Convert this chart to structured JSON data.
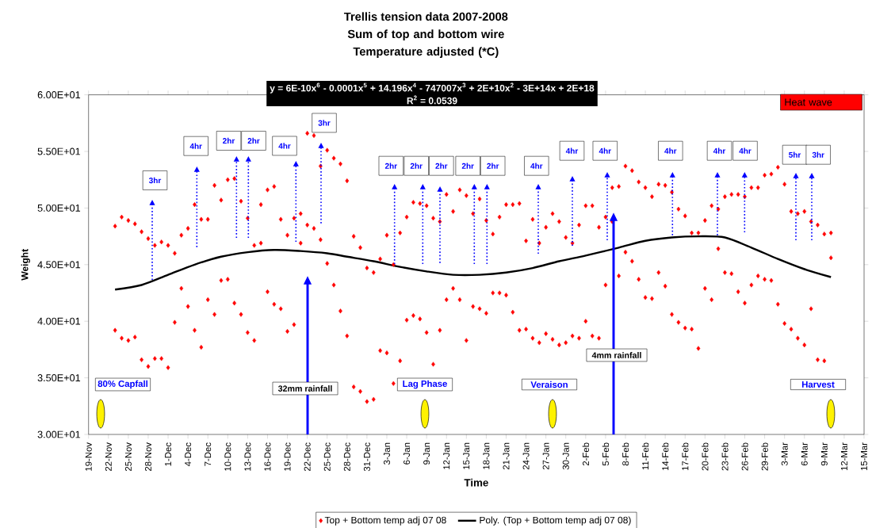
{
  "chart_data": {
    "type": "scatter",
    "title": "Trellis tension data 2007-2008",
    "subtitle": "Sum of top and bottom wire Temperature adjusted (*C)",
    "xlabel": "Time",
    "ylabel": "Weight",
    "legend": "bottom",
    "xlim": [
      "2007-11-19",
      "2008-03-15"
    ],
    "ylim": [
      30,
      60
    ],
    "yticks": [
      {
        "value": 30,
        "label": "3.00E+01"
      },
      {
        "value": 35,
        "label": "3.50E+01"
      },
      {
        "value": 40,
        "label": "4.00E+01"
      },
      {
        "value": 45,
        "label": "4.50E+01"
      },
      {
        "value": 50,
        "label": "5.00E+01"
      },
      {
        "value": 55,
        "label": "5.50E+01"
      },
      {
        "value": 60,
        "label": "6.00E+01"
      }
    ],
    "xticks": [
      {
        "value": "2007-11-19",
        "label": "19-Nov"
      },
      {
        "value": "2007-11-22",
        "label": "22-Nov"
      },
      {
        "value": "2007-11-25",
        "label": "25-Nov"
      },
      {
        "value": "2007-11-28",
        "label": "28-Nov"
      },
      {
        "value": "2007-12-01",
        "label": "1-Dec"
      },
      {
        "value": "2007-12-04",
        "label": "4-Dec"
      },
      {
        "value": "2007-12-07",
        "label": "7-Dec"
      },
      {
        "value": "2007-12-10",
        "label": "10-Dec"
      },
      {
        "value": "2007-12-13",
        "label": "13-Dec"
      },
      {
        "value": "2007-12-16",
        "label": "16-Dec"
      },
      {
        "value": "2007-12-19",
        "label": "19-Dec"
      },
      {
        "value": "2007-12-22",
        "label": "22-Dec"
      },
      {
        "value": "2007-12-25",
        "label": "25-Dec"
      },
      {
        "value": "2007-12-28",
        "label": "28-Dec"
      },
      {
        "value": "2007-12-31",
        "label": "31-Dec"
      },
      {
        "value": "2008-01-03",
        "label": "3-Jan"
      },
      {
        "value": "2008-01-06",
        "label": "6-Jan"
      },
      {
        "value": "2008-01-09",
        "label": "9-Jan"
      },
      {
        "value": "2008-01-12",
        "label": "12-Jan"
      },
      {
        "value": "2008-01-15",
        "label": "15-Jan"
      },
      {
        "value": "2008-01-18",
        "label": "18-Jan"
      },
      {
        "value": "2008-01-21",
        "label": "21-Jan"
      },
      {
        "value": "2008-01-24",
        "label": "24-Jan"
      },
      {
        "value": "2008-01-27",
        "label": "27-Jan"
      },
      {
        "value": "2008-01-30",
        "label": "30-Jan"
      },
      {
        "value": "2008-02-02",
        "label": "2-Feb"
      },
      {
        "value": "2008-02-05",
        "label": "5-Feb"
      },
      {
        "value": "2008-02-08",
        "label": "8-Feb"
      },
      {
        "value": "2008-02-11",
        "label": "11-Feb"
      },
      {
        "value": "2008-02-14",
        "label": "14-Feb"
      },
      {
        "value": "2008-02-17",
        "label": "17-Feb"
      },
      {
        "value": "2008-02-20",
        "label": "20-Feb"
      },
      {
        "value": "2008-02-23",
        "label": "23-Feb"
      },
      {
        "value": "2008-02-26",
        "label": "26-Feb"
      },
      {
        "value": "2008-02-29",
        "label": "29-Feb"
      },
      {
        "value": "2008-03-03",
        "label": "3-Mar"
      },
      {
        "value": "2008-03-06",
        "label": "6-Mar"
      },
      {
        "value": "2008-03-09",
        "label": "9-Mar"
      },
      {
        "value": "2008-03-12",
        "label": "12-Mar"
      },
      {
        "value": "2008-03-15",
        "label": "15-Mar"
      }
    ],
    "series": [
      {
        "name": "Top + Bottom temp adj 07 08",
        "type": "scatter",
        "color": "#ff0000",
        "marker": "diamond",
        "x": [
          "2007-11-23",
          "2007-11-23",
          "2007-11-24",
          "2007-11-24",
          "2007-11-25",
          "2007-11-25",
          "2007-11-26",
          "2007-11-26",
          "2007-11-27",
          "2007-11-27",
          "2007-11-28",
          "2007-11-28",
          "2007-11-29",
          "2007-11-29",
          "2007-11-30",
          "2007-11-30",
          "2007-12-01",
          "2007-12-01",
          "2007-12-02",
          "2007-12-02",
          "2007-12-03",
          "2007-12-03",
          "2007-12-04",
          "2007-12-04",
          "2007-12-05",
          "2007-12-05",
          "2007-12-06",
          "2007-12-06",
          "2007-12-07",
          "2007-12-07",
          "2007-12-08",
          "2007-12-08",
          "2007-12-09",
          "2007-12-09",
          "2007-12-10",
          "2007-12-10",
          "2007-12-11",
          "2007-12-11",
          "2007-12-12",
          "2007-12-12",
          "2007-12-13",
          "2007-12-13",
          "2007-12-14",
          "2007-12-14",
          "2007-12-15",
          "2007-12-15",
          "2007-12-16",
          "2007-12-16",
          "2007-12-17",
          "2007-12-17",
          "2007-12-18",
          "2007-12-18",
          "2007-12-19",
          "2007-12-19",
          "2007-12-20",
          "2007-12-20",
          "2007-12-21",
          "2007-12-21",
          "2007-12-22",
          "2007-12-22",
          "2007-12-23",
          "2007-12-23",
          "2007-12-24",
          "2007-12-24",
          "2007-12-25",
          "2007-12-25",
          "2007-12-26",
          "2007-12-26",
          "2007-12-27",
          "2007-12-27",
          "2007-12-28",
          "2007-12-28",
          "2007-12-29",
          "2007-12-29",
          "2007-12-30",
          "2007-12-30",
          "2007-12-31",
          "2007-12-31",
          "2008-01-01",
          "2008-01-01",
          "2008-01-02",
          "2008-01-02",
          "2008-01-03",
          "2008-01-03",
          "2008-01-04",
          "2008-01-04",
          "2008-01-05",
          "2008-01-05",
          "2008-01-06",
          "2008-01-06",
          "2008-01-07",
          "2008-01-07",
          "2008-01-08",
          "2008-01-08",
          "2008-01-09",
          "2008-01-09",
          "2008-01-10",
          "2008-01-10",
          "2008-01-11",
          "2008-01-11",
          "2008-01-12",
          "2008-01-12",
          "2008-01-13",
          "2008-01-13",
          "2008-01-14",
          "2008-01-14",
          "2008-01-15",
          "2008-01-15",
          "2008-01-16",
          "2008-01-16",
          "2008-01-17",
          "2008-01-17",
          "2008-01-18",
          "2008-01-18",
          "2008-01-19",
          "2008-01-19",
          "2008-01-20",
          "2008-01-20",
          "2008-01-21",
          "2008-01-21",
          "2008-01-22",
          "2008-01-22",
          "2008-01-23",
          "2008-01-23",
          "2008-01-24",
          "2008-01-24",
          "2008-01-25",
          "2008-01-25",
          "2008-01-26",
          "2008-01-26",
          "2008-01-27",
          "2008-01-27",
          "2008-01-28",
          "2008-01-28",
          "2008-01-29",
          "2008-01-29",
          "2008-01-30",
          "2008-01-30",
          "2008-01-31",
          "2008-01-31",
          "2008-02-01",
          "2008-02-01",
          "2008-02-02",
          "2008-02-02",
          "2008-02-03",
          "2008-02-03",
          "2008-02-04",
          "2008-02-04",
          "2008-02-05",
          "2008-02-05",
          "2008-02-06",
          "2008-02-06",
          "2008-02-07",
          "2008-02-07",
          "2008-02-08",
          "2008-02-08",
          "2008-02-09",
          "2008-02-09",
          "2008-02-10",
          "2008-02-10",
          "2008-02-11",
          "2008-02-11",
          "2008-02-12",
          "2008-02-12",
          "2008-02-13",
          "2008-02-13",
          "2008-02-14",
          "2008-02-14",
          "2008-02-15",
          "2008-02-15",
          "2008-02-16",
          "2008-02-16",
          "2008-02-17",
          "2008-02-17",
          "2008-02-18",
          "2008-02-18",
          "2008-02-19",
          "2008-02-19",
          "2008-02-20",
          "2008-02-20",
          "2008-02-21",
          "2008-02-21",
          "2008-02-22",
          "2008-02-22",
          "2008-02-23",
          "2008-02-23",
          "2008-02-24",
          "2008-02-24",
          "2008-02-25",
          "2008-02-25",
          "2008-02-26",
          "2008-02-26",
          "2008-02-27",
          "2008-02-27",
          "2008-02-28",
          "2008-02-28",
          "2008-02-29",
          "2008-02-29",
          "2008-03-01",
          "2008-03-01",
          "2008-03-02",
          "2008-03-02",
          "2008-03-03",
          "2008-03-03",
          "2008-03-04",
          "2008-03-04",
          "2008-03-05",
          "2008-03-05",
          "2008-03-06",
          "2008-03-06",
          "2008-03-07",
          "2008-03-07",
          "2008-03-08",
          "2008-03-08",
          "2008-03-09",
          "2008-03-09",
          "2008-03-10",
          "2008-03-10"
        ],
        "values": [
          48.4,
          39.2,
          49.2,
          38.5,
          48.9,
          38.3,
          48.6,
          38.6,
          47.9,
          36.6,
          47.3,
          36.0,
          46.7,
          36.7,
          47.0,
          36.7,
          46.7,
          35.9,
          46.0,
          39.9,
          47.6,
          42.9,
          48.2,
          41.3,
          50.3,
          39.2,
          49.0,
          37.7,
          49.0,
          41.9,
          52.0,
          40.6,
          50.7,
          43.6,
          52.5,
          43.7,
          52.6,
          41.6,
          50.6,
          40.6,
          49.1,
          39.0,
          46.7,
          38.3,
          50.3,
          46.9,
          51.6,
          42.6,
          51.9,
          41.5,
          49.0,
          41.1,
          47.6,
          39.1,
          49.1,
          39.7,
          49.5,
          46.9,
          56.6,
          48.5,
          56.4,
          48.2,
          53.7,
          47.2,
          55.1,
          45.1,
          54.4,
          43.2,
          53.9,
          40.9,
          52.4,
          38.7,
          47.5,
          34.2,
          46.5,
          33.8,
          44.7,
          32.9,
          44.3,
          33.1,
          45.5,
          37.4,
          47.6,
          37.2,
          45.0,
          34.5,
          47.8,
          36.5,
          49.2,
          40.1,
          50.5,
          40.5,
          50.4,
          40.2,
          50.2,
          39.0,
          49.1,
          36.2,
          48.8,
          39.2,
          51.2,
          41.9,
          49.7,
          42.9,
          51.6,
          41.9,
          51.1,
          38.3,
          49.5,
          41.3,
          50.8,
          41.1,
          48.9,
          40.7,
          47.7,
          42.5,
          49.2,
          42.5,
          50.3,
          42.3,
          50.3,
          40.8,
          50.4,
          39.2,
          47.1,
          39.3,
          49.0,
          38.5,
          46.9,
          38.1,
          48.3,
          38.9,
          49.5,
          38.4,
          48.8,
          37.9,
          47.4,
          38.1,
          46.9,
          38.7,
          48.5,
          38.5,
          50.2,
          40.0,
          50.2,
          38.7,
          48.3,
          38.5,
          49.2,
          43.2,
          51.8,
          48.8,
          51.9,
          44.0,
          53.7,
          46.1,
          53.3,
          45.3,
          52.3,
          43.7,
          51.8,
          42.1,
          51.0,
          42.0,
          52.1,
          44.3,
          52.0,
          43.1,
          51.4,
          40.6,
          49.9,
          39.9,
          49.3,
          39.4,
          47.8,
          39.3,
          47.8,
          37.6,
          48.9,
          42.9,
          50.2,
          41.9,
          49.9,
          46.4,
          51.0,
          44.3,
          51.2,
          44.2,
          51.2,
          42.6,
          51.0,
          41.6,
          51.8,
          43.2,
          51.8,
          44.0,
          52.9,
          43.7,
          53.0,
          43.6,
          53.6,
          41.5,
          52.1,
          39.8,
          49.7,
          39.3,
          49.5,
          38.5,
          49.7,
          37.9,
          48.8,
          41.1,
          48.5,
          36.6,
          47.7,
          36.5,
          47.8,
          45.6
        ]
      },
      {
        "name": "Poly. (Top + Bottom temp adj 07 08)",
        "type": "line",
        "color": "#000000",
        "marker": "none",
        "line_style": "solid",
        "x": [
          "2007-11-23",
          "2007-11-27",
          "2007-12-01",
          "2007-12-05",
          "2007-12-09",
          "2007-12-13",
          "2007-12-17",
          "2007-12-21",
          "2007-12-25",
          "2007-12-28",
          "2008-01-01",
          "2008-01-05",
          "2008-01-09",
          "2008-01-13",
          "2008-01-17",
          "2008-01-21",
          "2008-01-25",
          "2008-01-29",
          "2008-02-02",
          "2008-02-07",
          "2008-02-11",
          "2008-02-15",
          "2008-02-19",
          "2008-02-23",
          "2008-02-27",
          "2008-03-02",
          "2008-03-06",
          "2008-03-10"
        ],
        "values": [
          42.8,
          43.2,
          44.1,
          45.0,
          45.7,
          46.1,
          46.3,
          46.2,
          46.0,
          45.7,
          45.3,
          44.8,
          44.4,
          44.1,
          44.1,
          44.3,
          44.7,
          45.3,
          45.8,
          46.5,
          47.1,
          47.4,
          47.5,
          47.4,
          46.5,
          45.5,
          44.6,
          43.9
        ]
      }
    ],
    "annotations": [
      "y = 6E-10x$^{6}$ - 0.0001x$^{5}$ + 14.196x$^{4}$ - 747007x$^{3}$ + 2E+10x$^{2}$ - 3E+14x + 2E+18",
      "R$^{2}$ = 0.0539",
      "Heat wave",
      "32mm rainfall",
      "4mm rainfall",
      "80% Capfall",
      "Lag Phase",
      "Veraison",
      "Harvest",
      "3hr",
      "4hr",
      "2hr",
      "2hr",
      "4hr",
      "3hr",
      "2hr",
      "2hr",
      "2hr",
      "2hr",
      "2hr",
      "4hr",
      "4hr",
      "4hr",
      "4hr",
      "4hr",
      "4hr",
      "5hr",
      "3hr"
    ]
  }
}
